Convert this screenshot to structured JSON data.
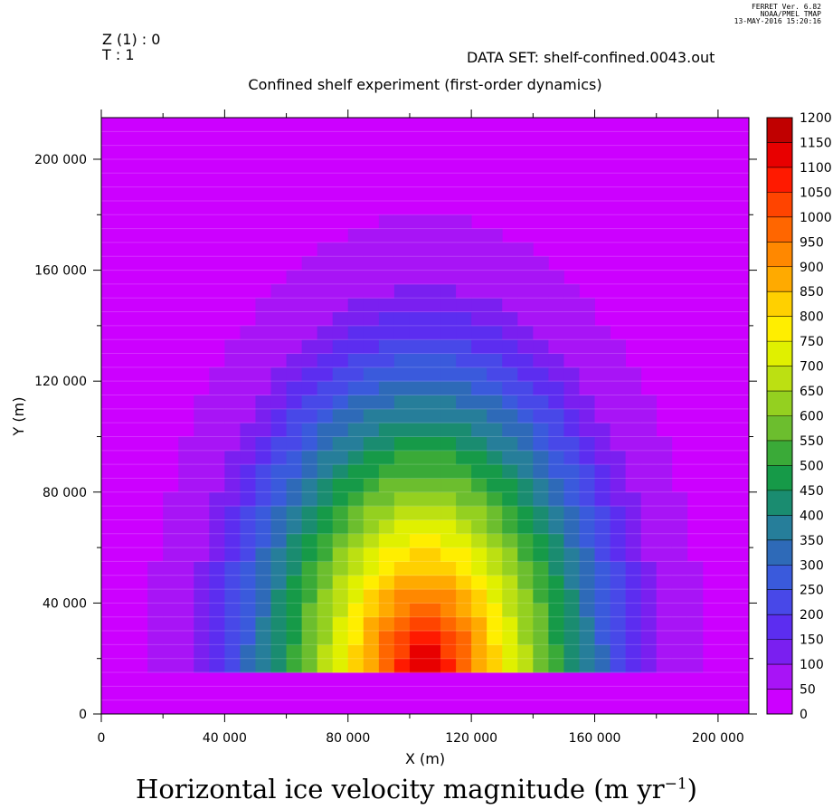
{
  "header": {
    "z_label": "Z (1) : 0",
    "t_label": "T : 1",
    "dataset": "DATA SET: shelf-confined.0043.out",
    "stamp_line1": "FERRET Ver. 6.82",
    "stamp_line2": "NOAA/PMEL TMAP",
    "stamp_line3": "13-MAY-2016 15:20:16"
  },
  "chart_data": {
    "type": "heatmap",
    "title": "Confined shelf experiment (first-order dynamics)",
    "xlabel": "X (m)",
    "ylabel": "Y (m)",
    "caption_main": "Horizontal ice velocity magnitude (m yr",
    "caption_sup": "−1",
    "caption_end": ")",
    "xlim": [
      0,
      210000
    ],
    "ylim": [
      0,
      215000
    ],
    "x_ticks": [
      0,
      40000,
      80000,
      120000,
      160000,
      200000
    ],
    "x_tick_labels": [
      "0",
      "40 000",
      "80 000",
      "120 000",
      "160 000",
      "200 000"
    ],
    "y_ticks": [
      0,
      40000,
      80000,
      120000,
      160000,
      200000
    ],
    "y_tick_labels": [
      "0",
      "40 000",
      "80 000",
      "120 000",
      "160 000",
      "200 000"
    ],
    "grid_spacing": 5000,
    "grid_nx": 42,
    "grid_ny": 43,
    "shelf_extent": {
      "x_min": 15000,
      "x_max": 195000,
      "y_min": 15000,
      "y_max": 180000
    },
    "peak_velocity": {
      "x": 105000,
      "y": 17500,
      "value": 1200
    },
    "colorbar": {
      "levels": [
        0,
        50,
        100,
        150,
        200,
        250,
        300,
        350,
        400,
        450,
        500,
        550,
        600,
        650,
        700,
        750,
        800,
        850,
        900,
        950,
        1000,
        1050,
        1100,
        1150,
        1200
      ],
      "labels": [
        "0",
        "50",
        "100",
        "150",
        "200",
        "250",
        "300",
        "350",
        "400",
        "450",
        "500",
        "550",
        "600",
        "650",
        "700",
        "750",
        "800",
        "850",
        "900",
        "950",
        "1000",
        "1050",
        "1100",
        "1150",
        "1200"
      ],
      "colors": [
        "#cc00ff",
        "#a814f6",
        "#7a1ff0",
        "#5c2df0",
        "#4848e8",
        "#3a5adc",
        "#2e6ab8",
        "#267e9a",
        "#1a8c70",
        "#169a48",
        "#3aaa38",
        "#6cbe2e",
        "#94d020",
        "#bce012",
        "#e0f000",
        "#ffee00",
        "#ffd000",
        "#ffaa00",
        "#ff8800",
        "#ff6600",
        "#ff4400",
        "#ff1a00",
        "#e80000",
        "#c00000",
        "#9a0000"
      ]
    }
  }
}
